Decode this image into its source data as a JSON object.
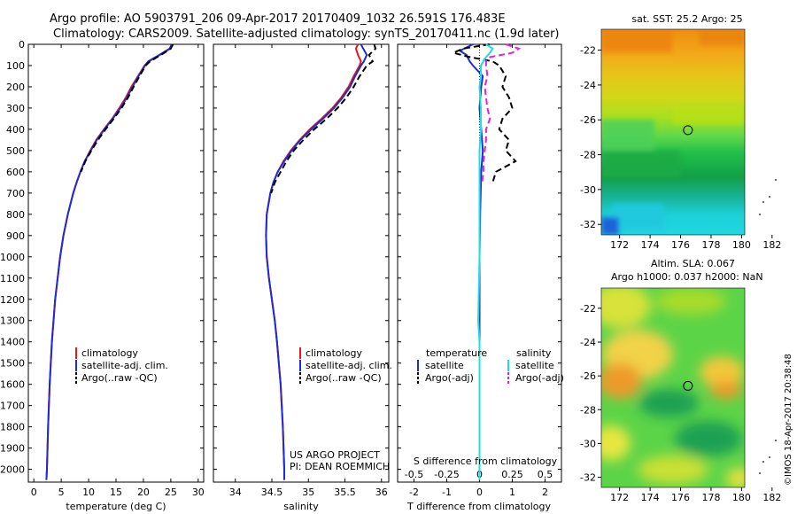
{
  "header": {
    "line1": "Argo profile: AO 5903791_206 09-Apr-2017 20170409_1032 26.591S 176.483E",
    "line2": "Climatology: CARS2009. Satellite-adjusted climatology: synTS_20170411.nc (1.9d later)"
  },
  "footer": {
    "project": "US ARGO PROJECT",
    "pi": "PI: DEAN ROEMMICH",
    "stamp": "©IMOS 18-Apr-2017 20:38:48"
  },
  "colors": {
    "climatology": "#e41a1c",
    "satellite": "#1f2bd6",
    "argo": "#000000",
    "salinity_sat": "#18e0e8",
    "salinity_argo": "#e020e0"
  },
  "chart_data": [
    {
      "type": "line",
      "panel": "temperature",
      "xlabel": "temperature (deg C)",
      "ylabel": "",
      "xlim": [
        -1,
        31
      ],
      "ylim": [
        2060,
        0
      ],
      "xticks": [
        "0",
        "5",
        "10",
        "15",
        "20",
        "25",
        "30"
      ],
      "xtick_values": [
        0,
        5,
        10,
        15,
        20,
        25,
        30
      ],
      "yticks": [
        "0",
        "100",
        "200",
        "300",
        "400",
        "500",
        "600",
        "700",
        "800",
        "900",
        "1000",
        "1100",
        "1200",
        "1300",
        "1400",
        "1500",
        "1600",
        "1700",
        "1800",
        "1900",
        "2000"
      ],
      "ytick_values": [
        0,
        100,
        200,
        300,
        400,
        500,
        600,
        700,
        800,
        900,
        1000,
        1100,
        1200,
        1300,
        1400,
        1500,
        1600,
        1700,
        1800,
        1900,
        2000
      ],
      "legend": [
        "climatology",
        "satellite-adj. clim.",
        "Argo(..raw -QC)"
      ],
      "series": [
        {
          "name": "climatology",
          "color": "#e41a1c",
          "style": "solid",
          "depth": [
            0,
            20,
            50,
            80,
            100,
            150,
            200,
            250,
            300,
            350,
            400,
            450,
            500,
            550,
            600,
            650,
            700,
            800,
            900,
            1000,
            1200,
            1400,
            1600,
            1800,
            2000,
            2050
          ],
          "values": [
            25.3,
            24.9,
            23.0,
            21.0,
            20.2,
            19.0,
            17.8,
            16.8,
            15.6,
            14.3,
            12.8,
            11.4,
            10.3,
            9.3,
            8.5,
            7.8,
            7.2,
            6.2,
            5.4,
            4.8,
            3.9,
            3.3,
            2.9,
            2.6,
            2.4,
            2.3
          ]
        },
        {
          "name": "satellite-adj. clim.",
          "color": "#1f2bd6",
          "style": "solid",
          "depth": [
            0,
            20,
            50,
            80,
            100,
            150,
            200,
            250,
            300,
            350,
            400,
            450,
            500,
            550,
            600,
            650,
            700,
            800,
            900,
            1000,
            1200,
            1400,
            1600,
            1800,
            2000,
            2050
          ],
          "values": [
            25.2,
            24.8,
            22.9,
            20.9,
            20.3,
            19.1,
            18.0,
            17.0,
            15.8,
            14.4,
            12.9,
            11.5,
            10.4,
            9.3,
            8.5,
            7.8,
            7.2,
            6.2,
            5.4,
            4.8,
            3.9,
            3.3,
            2.9,
            2.6,
            2.4,
            2.3
          ]
        },
        {
          "name": "Argo(..raw -QC)",
          "color": "#000000",
          "style": "dashed",
          "depth": [
            0,
            20,
            50,
            80,
            100,
            150,
            200,
            250,
            300,
            350,
            400,
            450,
            500,
            550,
            600
          ],
          "values": [
            25.4,
            25.0,
            23.2,
            21.2,
            20.4,
            19.3,
            18.2,
            17.2,
            16.0,
            14.6,
            13.1,
            11.7,
            10.5,
            9.4,
            8.6
          ]
        }
      ]
    },
    {
      "type": "line",
      "panel": "salinity",
      "xlabel": "salinity",
      "xlim": [
        33.7,
        36.1
      ],
      "ylim": [
        2060,
        0
      ],
      "xticks": [
        "34",
        "34.5",
        "35",
        "35.5",
        "36"
      ],
      "xtick_values": [
        34,
        34.5,
        35,
        35.5,
        36
      ],
      "legend": [
        "climatology",
        "satellite-adj. clim.",
        "Argo(..raw -QC)"
      ],
      "series": [
        {
          "name": "climatology",
          "color": "#e41a1c",
          "style": "solid",
          "depth": [
            0,
            20,
            50,
            80,
            100,
            150,
            200,
            250,
            300,
            350,
            400,
            450,
            500,
            550,
            600,
            650,
            700,
            800,
            900,
            1000,
            1100,
            1200,
            1300,
            1400,
            1600,
            1800,
            2000,
            2050
          ],
          "values": [
            35.68,
            35.65,
            35.68,
            35.72,
            35.7,
            35.62,
            35.55,
            35.45,
            35.33,
            35.18,
            35.02,
            34.88,
            34.76,
            34.66,
            34.58,
            34.52,
            34.48,
            34.43,
            34.42,
            34.43,
            34.46,
            34.5,
            34.54,
            34.57,
            34.62,
            34.65,
            34.67,
            34.67
          ]
        },
        {
          "name": "satellite-adj. clim.",
          "color": "#1f2bd6",
          "style": "solid",
          "depth": [
            0,
            20,
            50,
            80,
            100,
            150,
            200,
            250,
            300,
            350,
            400,
            450,
            500,
            550,
            600,
            650,
            700,
            800,
            900,
            1000,
            1100,
            1200,
            1300,
            1400,
            1600,
            1800,
            2000,
            2050
          ],
          "values": [
            35.72,
            35.75,
            35.8,
            35.76,
            35.72,
            35.64,
            35.57,
            35.47,
            35.35,
            35.2,
            35.04,
            34.89,
            34.77,
            34.67,
            34.58,
            34.52,
            34.48,
            34.43,
            34.42,
            34.43,
            34.46,
            34.5,
            34.54,
            34.57,
            34.62,
            34.65,
            34.67,
            34.67
          ]
        },
        {
          "name": "Argo(..raw -QC)",
          "color": "#000000",
          "style": "dashed",
          "depth": [
            0,
            20,
            50,
            80,
            100,
            150,
            200,
            250,
            300,
            350,
            400,
            450,
            500,
            550,
            600,
            650,
            700
          ],
          "values": [
            35.9,
            35.92,
            35.83,
            35.88,
            35.8,
            35.7,
            35.62,
            35.52,
            35.4,
            35.25,
            35.08,
            34.93,
            34.8,
            34.7,
            34.62,
            34.54,
            34.49
          ]
        }
      ]
    },
    {
      "type": "line",
      "panel": "differences",
      "xlabel": "T difference from climatology",
      "xlabel_top": "S difference from climatology",
      "xlim": [
        -2.5,
        2.5
      ],
      "ylim": [
        2060,
        0
      ],
      "xticks": [
        "-2",
        "-1",
        "0",
        "1",
        "2"
      ],
      "xtick_values": [
        -2,
        -1,
        0,
        1,
        2
      ],
      "xticks_s": [
        "-0.5",
        "-0.25",
        "0",
        "0.25",
        "0.5"
      ],
      "legend_left_title": "temperature",
      "legend_right_title": "salinity",
      "legend_left": [
        "satellite",
        "Argo(-adj)"
      ],
      "legend_right": [
        "satellite",
        "Argo(-adj)"
      ],
      "series": [
        {
          "name": "T satellite",
          "color": "#1f2bd6",
          "style": "solid",
          "depth": [
            0,
            30,
            50,
            80,
            100,
            150,
            200,
            300,
            400,
            500,
            600,
            800,
            1000,
            1200,
            1500,
            2000,
            2050
          ],
          "values": [
            -0.2,
            -0.6,
            -0.4,
            -0.3,
            -0.2,
            0.1,
            0.05,
            0.0,
            0.05,
            0.1,
            0.05,
            0.02,
            0.0,
            0.0,
            0.0,
            0.0,
            0.0
          ]
        },
        {
          "name": "T Argo(-adj)",
          "color": "#000000",
          "style": "dashed",
          "depth": [
            0,
            20,
            40,
            60,
            80,
            100,
            150,
            200,
            250,
            300,
            350,
            400,
            450,
            500,
            550,
            600,
            650
          ],
          "values": [
            0.3,
            -0.5,
            -0.8,
            -0.3,
            0.4,
            0.6,
            0.8,
            0.7,
            0.9,
            1.0,
            0.7,
            0.6,
            0.9,
            0.8,
            1.1,
            0.5,
            0.4
          ]
        },
        {
          "name": "S satellite",
          "color": "#18e0e8",
          "style": "solid",
          "depth": [
            0,
            20,
            40,
            60,
            80,
            100,
            150,
            200,
            300,
            400,
            500,
            600,
            700,
            800,
            1000,
            1300,
            1400,
            1600,
            2000,
            2050
          ],
          "values": [
            0.05,
            0.1,
            0.08,
            0.05,
            0.03,
            0.01,
            0.01,
            0.0,
            0.01,
            0.01,
            0.0,
            0.0,
            0.0,
            0.0,
            0.0,
            -0.01,
            0.0,
            0.0,
            0.0,
            0.0
          ]
        },
        {
          "name": "S Argo(-adj)",
          "color": "#e020e0",
          "style": "dashed",
          "depth": [
            0,
            20,
            40,
            60,
            80,
            100,
            150,
            200,
            250,
            300,
            350,
            400,
            450,
            500,
            550,
            600,
            650
          ],
          "values": [
            0.2,
            0.3,
            0.25,
            0.08,
            0.05,
            0.05,
            0.06,
            0.04,
            0.05,
            0.06,
            0.08,
            0.05,
            0.05,
            0.04,
            0.03,
            0.03,
            0.02
          ]
        }
      ]
    },
    {
      "type": "heatmap",
      "panel": "sst-map",
      "title": "sat. SST: 25.2  Argo: 25",
      "xticks": [
        "172",
        "174",
        "176",
        "178",
        "180",
        "182"
      ],
      "xtick_values": [
        172,
        174,
        176,
        178,
        180,
        182
      ],
      "yticks": [
        "-22",
        "-24",
        "-26",
        "-28",
        "-30",
        "-32"
      ],
      "ytick_values": [
        -22,
        -24,
        -26,
        -28,
        -30,
        -32
      ],
      "xlim": [
        170.8,
        182.3
      ],
      "ylim": [
        -32.6,
        -20.8
      ],
      "profile_location": [
        176.483,
        -26.591
      ]
    },
    {
      "type": "heatmap",
      "panel": "sla-map",
      "title_line1": "Altim. SLA: 0.067",
      "title_line2": "Argo h1000: 0.037 h2000: NaN",
      "xticks": [
        "172",
        "174",
        "176",
        "178",
        "180",
        "182"
      ],
      "xtick_values": [
        172,
        174,
        176,
        178,
        180,
        182
      ],
      "yticks": [
        "-22",
        "-24",
        "-26",
        "-28",
        "-30",
        "-32"
      ],
      "ytick_values": [
        -22,
        -24,
        -26,
        -28,
        -30,
        -32
      ],
      "xlim": [
        170.8,
        182.3
      ],
      "ylim": [
        -32.6,
        -20.8
      ],
      "profile_location": [
        176.483,
        -26.591
      ]
    }
  ]
}
